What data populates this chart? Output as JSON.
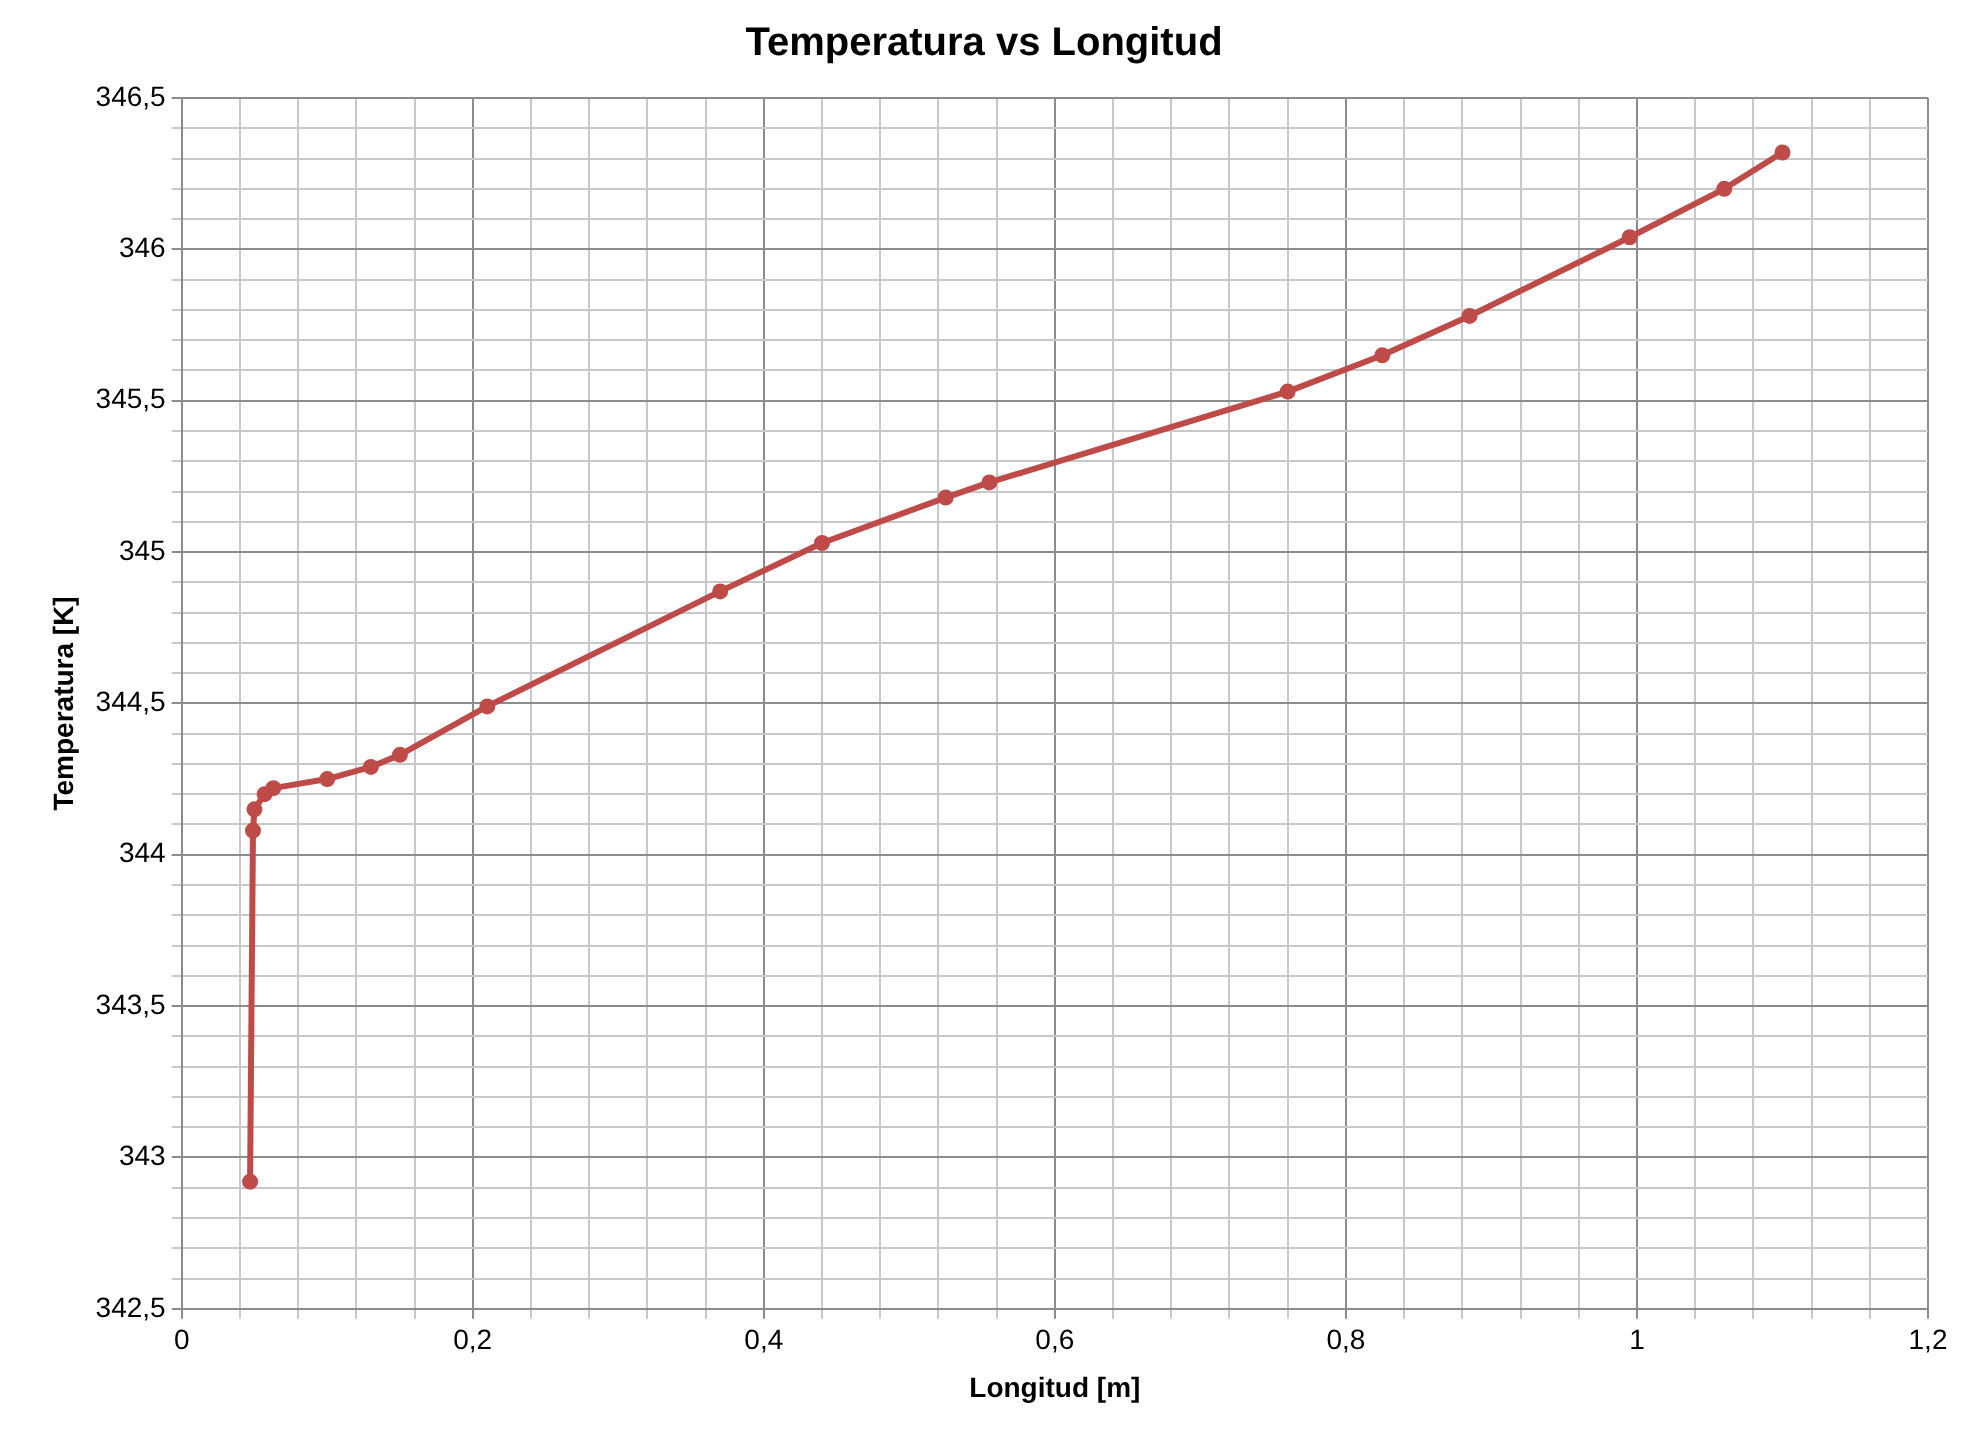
{
  "chart_data": {
    "type": "line",
    "title": "Temperatura vs Longitud",
    "xlabel": "Longitud [m]",
    "ylabel": "Temperatura [K]",
    "series": [
      {
        "color": "#be4b48",
        "x": [
          0.047,
          0.049,
          0.05,
          0.057,
          0.063,
          0.1,
          0.13,
          0.15,
          0.21,
          0.37,
          0.44,
          0.525,
          0.555,
          0.76,
          0.825,
          0.885,
          0.995,
          1.06,
          1.1
        ],
        "values": [
          342.92,
          344.08,
          344.15,
          344.2,
          344.22,
          344.25,
          344.29,
          344.33,
          344.49,
          344.87,
          345.03,
          345.18,
          345.23,
          345.53,
          345.65,
          345.78,
          346.04,
          346.2,
          346.32
        ]
      }
    ],
    "xlim": [
      0,
      1.2
    ],
    "xticks": [
      0,
      {
        "value": 0.04,
        "label": null
      },
      {
        "value": 0.08,
        "label": null
      },
      {
        "value": 0.12,
        "label": null
      },
      {
        "value": 0.16,
        "label": null
      },
      {
        "value": 0.2,
        "label": "0,2"
      },
      {
        "value": 0.24,
        "label": null
      },
      {
        "value": 0.28,
        "label": null
      },
      {
        "value": 0.32,
        "label": null
      },
      {
        "value": 0.36,
        "label": null
      },
      {
        "value": 0.4,
        "label": "0,4"
      },
      {
        "value": 0.44,
        "label": null
      },
      {
        "value": 0.48,
        "label": null
      },
      {
        "value": 0.52,
        "label": null
      },
      {
        "value": 0.56,
        "label": null
      },
      {
        "value": 0.6,
        "label": "0,6"
      },
      {
        "value": 0.64,
        "label": null
      },
      {
        "value": 0.68,
        "label": null
      },
      {
        "value": 0.72,
        "label": null
      },
      {
        "value": 0.76,
        "label": null
      },
      {
        "value": 0.8,
        "label": "0,8"
      },
      {
        "value": 0.84,
        "label": null
      },
      {
        "value": 0.88,
        "label": null
      },
      {
        "value": 0.92,
        "label": null
      },
      {
        "value": 0.96,
        "label": null
      },
      1,
      {
        "value": 1.04,
        "label": null
      },
      {
        "value": 1.08,
        "label": null
      },
      {
        "value": 1.12,
        "label": null
      },
      {
        "value": 1.16,
        "label": null
      },
      {
        "value": 1.2,
        "label": "1,2"
      }
    ],
    "ylim": [
      342.5,
      346.5
    ],
    "yticks": [
      {
        "value": 342.5,
        "label": "342,5"
      },
      {
        "value": 342.6,
        "label": null
      },
      {
        "value": 342.7,
        "label": null
      },
      {
        "value": 342.8,
        "label": null
      },
      {
        "value": 342.9,
        "label": null
      },
      343,
      {
        "value": 343.1,
        "label": null
      },
      {
        "value": 343.2,
        "label": null
      },
      {
        "value": 343.3,
        "label": null
      },
      {
        "value": 343.4,
        "label": null
      },
      {
        "value": 343.5,
        "label": "343,5"
      },
      {
        "value": 343.6,
        "label": null
      },
      {
        "value": 343.7,
        "label": null
      },
      {
        "value": 343.8,
        "label": null
      },
      {
        "value": 343.9,
        "label": null
      },
      344,
      {
        "value": 344.1,
        "label": null
      },
      {
        "value": 344.2,
        "label": null
      },
      {
        "value": 344.3,
        "label": null
      },
      {
        "value": 344.4,
        "label": null
      },
      {
        "value": 344.5,
        "label": "344,5"
      },
      {
        "value": 344.6,
        "label": null
      },
      {
        "value": 344.7,
        "label": null
      },
      {
        "value": 344.8,
        "label": null
      },
      {
        "value": 344.9,
        "label": null
      },
      345,
      {
        "value": 345.1,
        "label": null
      },
      {
        "value": 345.2,
        "label": null
      },
      {
        "value": 345.3,
        "label": null
      },
      {
        "value": 345.4,
        "label": null
      },
      {
        "value": 345.5,
        "label": "345,5"
      },
      {
        "value": 345.6,
        "label": null
      },
      {
        "value": 345.7,
        "label": null
      },
      {
        "value": 345.8,
        "label": null
      },
      {
        "value": 345.9,
        "label": null
      },
      346,
      {
        "value": 346.1,
        "label": null
      },
      {
        "value": 346.2,
        "label": null
      },
      {
        "value": 346.3,
        "label": null
      },
      {
        "value": 346.4,
        "label": null
      },
      {
        "value": 346.5,
        "label": "346,5"
      }
    ],
    "grid": true,
    "marker": "circle",
    "legend": false
  }
}
